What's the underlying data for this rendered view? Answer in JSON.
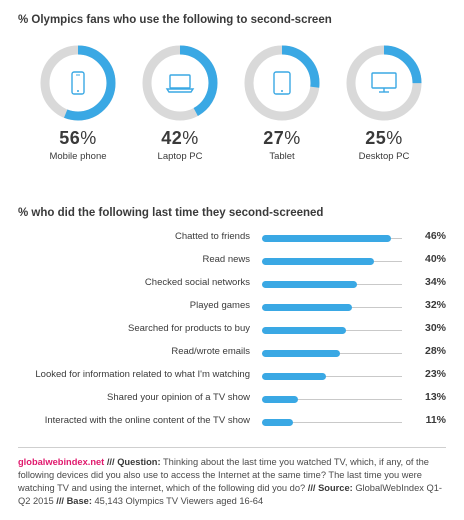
{
  "chart_data": [
    {
      "type": "pie",
      "title": "% Olympics fans who use the following to second-screen",
      "categories": [
        "Mobile phone",
        "Laptop PC",
        "Tablet",
        "Desktop PC"
      ],
      "values": [
        56,
        42,
        27,
        25
      ],
      "icons": [
        "mobile-phone-icon",
        "laptop-icon",
        "tablet-icon",
        "desktop-icon"
      ],
      "unit": "%"
    },
    {
      "type": "bar",
      "orientation": "horizontal",
      "title": "% who did the following last time they second-screened",
      "categories": [
        "Chatted to friends",
        "Read news",
        "Checked social networks",
        "Played games",
        "Searched for products to buy",
        "Read/wrote emails",
        "Looked for information related to what I'm watching",
        "Shared your opinion of a TV show",
        "Interacted with the online content of the TV show"
      ],
      "values": [
        46,
        40,
        34,
        32,
        30,
        28,
        23,
        13,
        11
      ],
      "unit": "%",
      "xlim": [
        0,
        50
      ]
    }
  ],
  "colors": {
    "accent": "#3aa8e4",
    "ring_bg": "#d9d9d9",
    "brand": "#e0196d"
  },
  "footer": {
    "site": "globalwebindex.net",
    "sep1": " /// ",
    "question_label": "Question:",
    "question_text": " Thinking about the last time you watched TV, which, if any, of the following devices did you also use to access the Internet at the same time? The last time you were watching TV and using the internet, which of the following did you do? ",
    "sep2": "/// ",
    "source_label": "Source:",
    "source_text": " GlobalWebIndex Q1-Q2 2015 ",
    "sep3": "/// ",
    "base_label": "Base:",
    "base_text": " 45,143 Olympics TV Viewers aged 16-64"
  }
}
